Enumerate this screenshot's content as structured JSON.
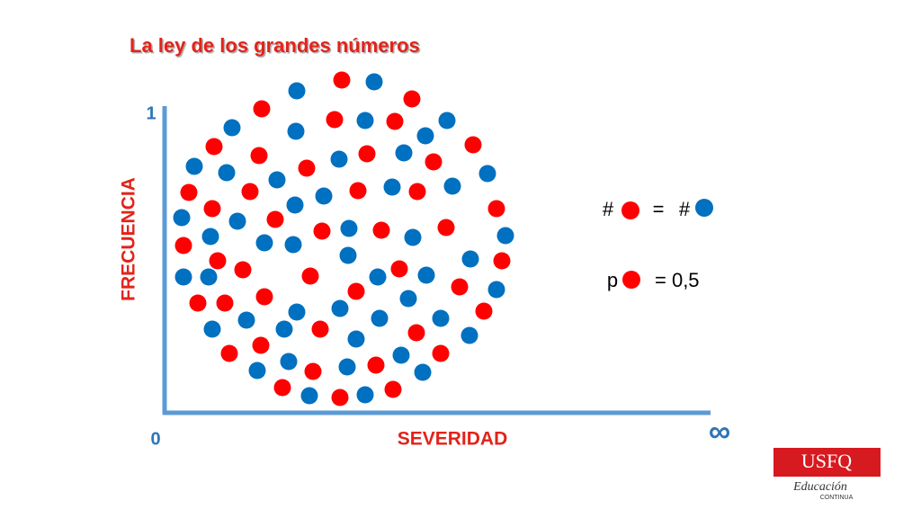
{
  "header": {
    "title": "La ley de los grandes números"
  },
  "axes": {
    "y_top": "1",
    "origin": "0",
    "y_label": "FRECUENCIA",
    "x_label": "SEVERIDAD",
    "x_end": "∞"
  },
  "equations": {
    "count_left": "#",
    "equals": "=",
    "count_right": "#",
    "prob": "p",
    "prob_value": "= 0,5"
  },
  "logo": {
    "name": "USFQ",
    "line1": "Educación",
    "line2": "CONTINUA"
  }
}
